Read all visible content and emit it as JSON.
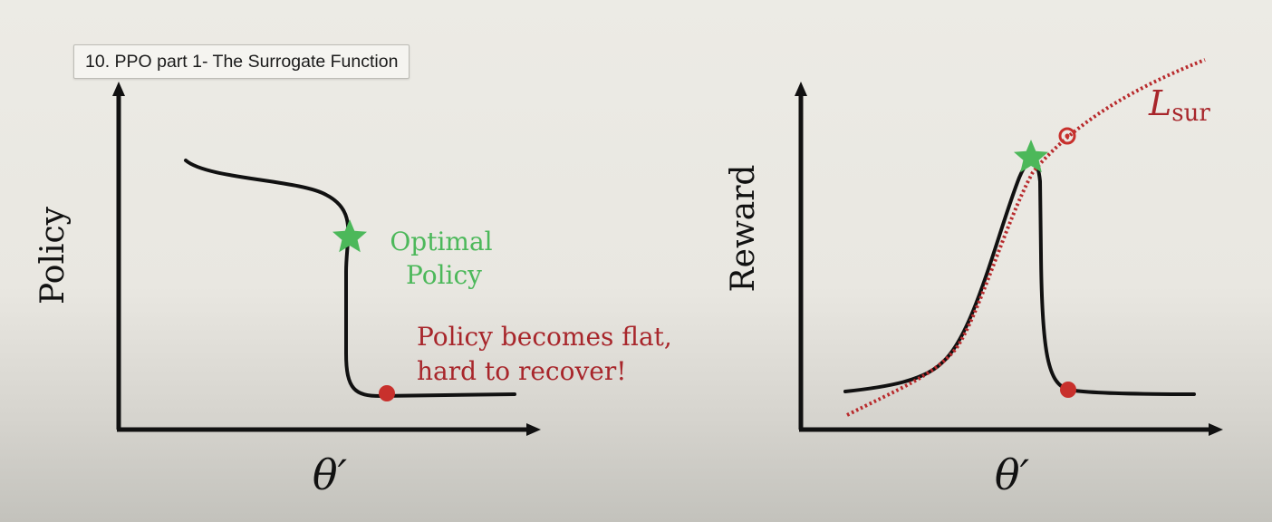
{
  "video": {
    "title": "10. PPO part 1- The Surrogate Function"
  },
  "left_plot": {
    "y_axis_label": "Policy",
    "x_axis_label": "θ′",
    "star_annotation_line1": "Optimal",
    "star_annotation_line2": "Policy",
    "dot_annotation_line1": "Policy becomes flat,",
    "dot_annotation_line2": "hard to recover!"
  },
  "right_plot": {
    "y_axis_label": "Reward",
    "x_axis_label": "θ′",
    "surrogate_label_main": "L",
    "surrogate_label_sub": "sur"
  },
  "colors": {
    "background": "#ecebe5",
    "curve": "#111111",
    "optimal_star": "#4cb85a",
    "annotation_green": "#4cb85a",
    "annotation_red": "#a8262b",
    "marker_red": "#c8302c",
    "surrogate_dotted": "#b82a2c"
  },
  "icons": {
    "optimal_marker": "star-icon",
    "current_marker": "filled-circle-icon",
    "surrogate_marker": "circle-dot-icon"
  }
}
